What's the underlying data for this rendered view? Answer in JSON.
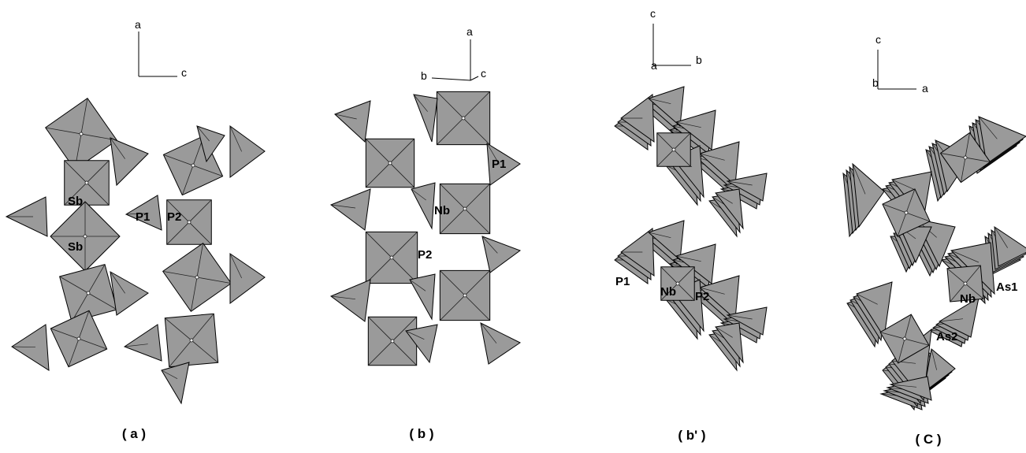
{
  "panels": [
    {
      "caption": "( a )",
      "axes": [
        "a",
        "c"
      ],
      "atoms": [
        "Sb",
        "Sb",
        "P1",
        "P2"
      ]
    },
    {
      "caption": "( b )",
      "axes": [
        "a",
        "b",
        "c"
      ],
      "atoms": [
        "P1",
        "Nb",
        "P2"
      ]
    },
    {
      "caption": "( b' )",
      "axes": [
        "c",
        "a",
        "b"
      ],
      "atoms": [
        "P1",
        "Nb",
        "P2"
      ]
    },
    {
      "caption": "( C )",
      "axes": [
        "c",
        "b",
        "a"
      ],
      "atoms": [
        "Nb",
        "As1",
        "As2"
      ]
    }
  ]
}
